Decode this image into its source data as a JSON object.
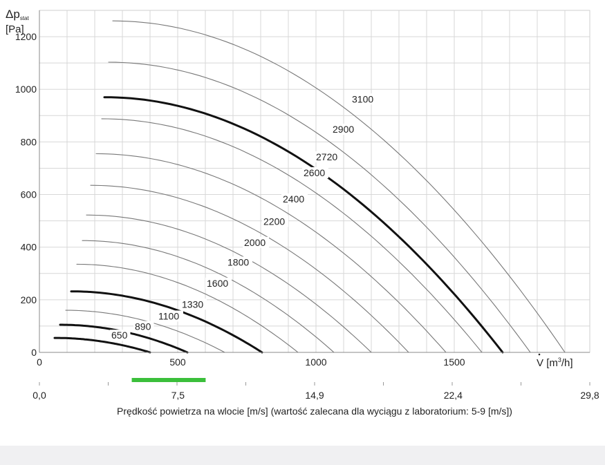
{
  "chart_data": {
    "type": "line",
    "y_title_main": "Δp",
    "y_title_sub": "stat",
    "y_unit": "[Pa]",
    "x_title_main": "V",
    "x_title_unit_pre": "[m",
    "x_title_unit_sup": "3",
    "x_title_unit_post": "/h]",
    "xlim": [
      0,
      1990
    ],
    "ylim": [
      0,
      1300
    ],
    "x_ticks": [
      0,
      500,
      1000,
      1500
    ],
    "x_tick_labels": [
      "0",
      "500",
      "1000",
      "1500"
    ],
    "y_ticks": [
      0,
      200,
      400,
      600,
      800,
      1000,
      1200
    ],
    "y_tick_labels": [
      "0",
      "200",
      "400",
      "600",
      "800",
      "1000",
      "1200"
    ],
    "grid": true,
    "series": [
      {
        "name": "650",
        "bold": true,
        "x_start": 55,
        "p_max": 55,
        "x_zero": 400,
        "label_x": 260,
        "label_y": 52
      },
      {
        "name": "890",
        "bold": true,
        "x_start": 75,
        "p_max": 105,
        "x_zero": 535,
        "label_x": 345,
        "label_y": 85
      },
      {
        "name": "1100",
        "bold": false,
        "x_start": 95,
        "p_max": 160,
        "x_zero": 670,
        "label_x": 430,
        "label_y": 125
      },
      {
        "name": "1330",
        "bold": true,
        "x_start": 115,
        "p_max": 232,
        "x_zero": 805,
        "label_x": 515,
        "label_y": 170
      },
      {
        "name": "1600",
        "bold": false,
        "x_start": 135,
        "p_max": 335,
        "x_zero": 935,
        "label_x": 605,
        "label_y": 250
      },
      {
        "name": "1800",
        "bold": false,
        "x_start": 155,
        "p_max": 425,
        "x_zero": 1065,
        "label_x": 680,
        "label_y": 330
      },
      {
        "name": "2000",
        "bold": false,
        "x_start": 170,
        "p_max": 522,
        "x_zero": 1200,
        "label_x": 740,
        "label_y": 405
      },
      {
        "name": "2200",
        "bold": false,
        "x_start": 185,
        "p_max": 635,
        "x_zero": 1335,
        "label_x": 810,
        "label_y": 485
      },
      {
        "name": "2400",
        "bold": false,
        "x_start": 205,
        "p_max": 755,
        "x_zero": 1470,
        "label_x": 880,
        "label_y": 570
      },
      {
        "name": "2600",
        "bold": false,
        "x_start": 225,
        "p_max": 888,
        "x_zero": 1600,
        "label_x": 955,
        "label_y": 670
      },
      {
        "name": "2720",
        "bold": true,
        "x_start": 235,
        "p_max": 970,
        "x_zero": 1675,
        "label_x": 1000,
        "label_y": 730
      },
      {
        "name": "2900",
        "bold": false,
        "x_start": 250,
        "p_max": 1103,
        "x_zero": 1775,
        "label_x": 1060,
        "label_y": 835
      },
      {
        "name": "3100",
        "bold": false,
        "x_start": 265,
        "p_max": 1260,
        "x_zero": 1900,
        "label_x": 1130,
        "label_y": 950
      }
    ]
  },
  "velocity_axis": {
    "ticks": [
      "0,0",
      "7,5",
      "14,9",
      "22,4",
      "29,8"
    ],
    "tick_values": [
      0,
      7.5,
      14.9,
      22.4,
      29.8
    ],
    "max": 29.8,
    "recommended_range": [
      5,
      9
    ],
    "recommended_color": "#3bbf3b",
    "title": "Prędkość powietrza na wlocie [m/s] (wartość zalecana dla wyciągu z laboratorium: 5-9 [m/s])"
  }
}
